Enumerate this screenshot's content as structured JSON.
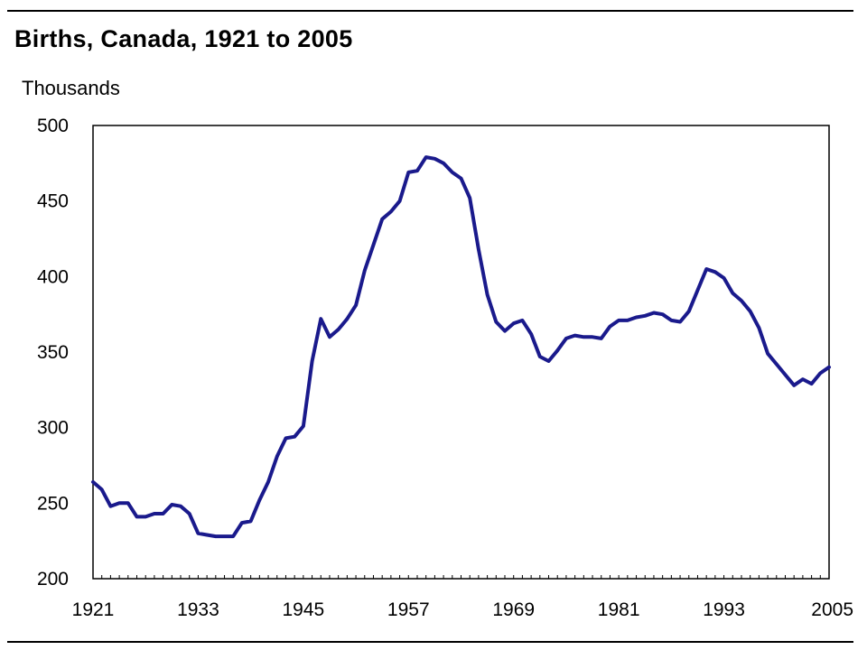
{
  "chart_data": {
    "type": "line",
    "title": "Births, Canada, 1921 to 2005",
    "ylabel": "Thousands",
    "xlabel": "",
    "xlim": [
      1921,
      2005
    ],
    "ylim": [
      200,
      500
    ],
    "x_ticks": [
      "1921",
      "1933",
      "1945",
      "1957",
      "1969",
      "1981",
      "1993",
      "2005"
    ],
    "y_ticks": [
      "500",
      "450",
      "400",
      "350",
      "300",
      "250",
      "200"
    ],
    "grid": false,
    "line_color": "#1a1a8c",
    "series": [
      {
        "x": [
          1921,
          1922,
          1923,
          1924,
          1925,
          1926,
          1927,
          1928,
          1929,
          1930,
          1931,
          1932,
          1933,
          1934,
          1935,
          1936,
          1937,
          1938,
          1939,
          1940,
          1941,
          1942,
          1943,
          1944,
          1945,
          1946,
          1947,
          1948,
          1949,
          1950,
          1951,
          1952,
          1953,
          1954,
          1955,
          1956,
          1957,
          1958,
          1959,
          1960,
          1961,
          1962,
          1963,
          1964,
          1965,
          1966,
          1967,
          1968,
          1969,
          1970,
          1971,
          1972,
          1973,
          1974,
          1975,
          1976,
          1977,
          1978,
          1979,
          1980,
          1981,
          1982,
          1983,
          1984,
          1985,
          1986,
          1987,
          1988,
          1989,
          1990,
          1991,
          1992,
          1993,
          1994,
          1995,
          1996,
          1997,
          1998,
          1999,
          2000,
          2001,
          2002,
          2003,
          2004,
          2005
        ],
        "values": [
          264,
          259,
          248,
          250,
          250,
          241,
          241,
          243,
          243,
          249,
          248,
          243,
          230,
          229,
          228,
          228,
          228,
          237,
          238,
          252,
          264,
          281,
          293,
          294,
          301,
          344,
          372,
          360,
          365,
          372,
          381,
          404,
          421,
          438,
          443,
          450,
          469,
          470,
          479,
          478,
          475,
          469,
          465,
          452,
          418,
          388,
          370,
          364,
          369,
          371,
          362,
          347,
          344,
          351,
          359,
          361,
          360,
          360,
          359,
          367,
          371,
          371,
          373,
          374,
          376,
          375,
          371,
          370,
          377,
          391,
          405,
          403,
          399,
          389,
          384,
          377,
          366,
          349,
          342,
          335,
          328,
          332,
          329,
          336,
          340
        ]
      }
    ]
  }
}
